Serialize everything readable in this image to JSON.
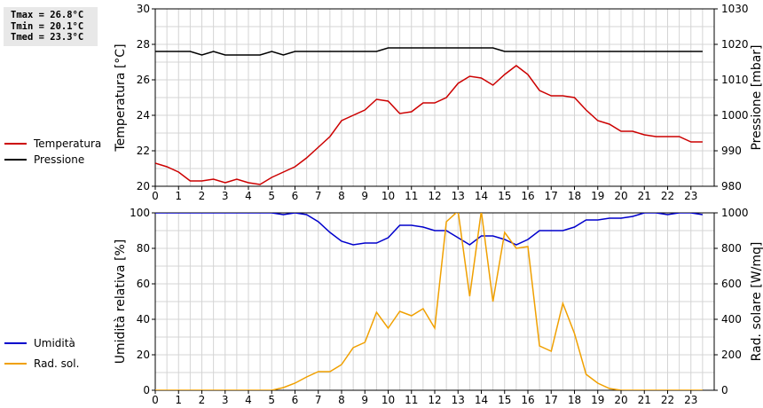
{
  "stats": {
    "tmax": "Tmax = 26.8°C",
    "tmin": "Tmin = 20.1°C",
    "tmed": "Tmed = 23.3°C"
  },
  "chart_data": [
    {
      "type": "line",
      "xlabel": "",
      "x_ticks": [
        0,
        1,
        2,
        3,
        4,
        5,
        6,
        7,
        8,
        9,
        10,
        11,
        12,
        13,
        14,
        15,
        16,
        17,
        18,
        19,
        20,
        21,
        22,
        23
      ],
      "xlim": [
        0,
        24
      ],
      "ylabel_left": "Temperatura [°C]",
      "ylabel_right": "Pressione [mbar]",
      "ylim_left": [
        20,
        30
      ],
      "ylim_right": [
        980,
        1030
      ],
      "yticks_left": [
        20,
        22,
        24,
        26,
        28,
        30
      ],
      "yticks_right": [
        980,
        990,
        1000,
        1010,
        1020,
        1030
      ],
      "grid": true,
      "legend_position": "left",
      "series": [
        {
          "name": "Temperatura",
          "axis": "left",
          "color": "#cc0000",
          "x": [
            0,
            0.5,
            1,
            1.5,
            2,
            2.5,
            3,
            3.5,
            4,
            4.5,
            5,
            5.5,
            6,
            6.5,
            7,
            7.5,
            8,
            8.5,
            9,
            9.5,
            10,
            10.5,
            11,
            11.5,
            12,
            12.5,
            13,
            13.5,
            14,
            14.5,
            15,
            15.5,
            16,
            16.5,
            17,
            17.5,
            18,
            18.5,
            19,
            19.5,
            20,
            20.5,
            21,
            21.5,
            22,
            22.5,
            23,
            23.5
          ],
          "y": [
            21.3,
            21.1,
            20.8,
            20.3,
            20.3,
            20.4,
            20.2,
            20.4,
            20.2,
            20.1,
            20.5,
            20.8,
            21.1,
            21.6,
            22.2,
            22.8,
            23.7,
            24.0,
            24.3,
            24.9,
            24.8,
            24.1,
            24.2,
            24.7,
            24.7,
            25.0,
            25.8,
            26.2,
            26.1,
            25.7,
            26.3,
            26.8,
            26.3,
            25.4,
            25.1,
            25.1,
            25.0,
            24.3,
            23.7,
            23.5,
            23.1,
            23.1,
            22.9,
            22.8,
            22.8,
            22.8,
            22.5,
            22.5
          ]
        },
        {
          "name": "Pressione",
          "axis": "right",
          "color": "#000000",
          "x": [
            0,
            0.5,
            1,
            1.5,
            2,
            2.5,
            3,
            3.5,
            4,
            4.5,
            5,
            5.5,
            6,
            6.5,
            7,
            7.5,
            8,
            8.5,
            9,
            9.5,
            10,
            10.5,
            11,
            11.5,
            12,
            12.5,
            13,
            13.5,
            14,
            14.5,
            15,
            15.5,
            16,
            16.5,
            17,
            17.5,
            18,
            18.5,
            19,
            19.5,
            20,
            20.5,
            21,
            21.5,
            22,
            22.5,
            23,
            23.5
          ],
          "y": [
            1018,
            1018,
            1018,
            1018,
            1017,
            1018,
            1017,
            1017,
            1017,
            1017,
            1018,
            1017,
            1018,
            1018,
            1018,
            1018,
            1018,
            1018,
            1018,
            1018,
            1019,
            1019,
            1019,
            1019,
            1019,
            1019,
            1019,
            1019,
            1019,
            1019,
            1018,
            1018,
            1018,
            1018,
            1018,
            1018,
            1018,
            1018,
            1018,
            1018,
            1018,
            1018,
            1018,
            1018,
            1018,
            1018,
            1018,
            1018
          ]
        }
      ]
    },
    {
      "type": "line",
      "xlabel": "",
      "x_ticks": [
        0,
        1,
        2,
        3,
        4,
        5,
        6,
        7,
        8,
        9,
        10,
        11,
        12,
        13,
        14,
        15,
        16,
        17,
        18,
        19,
        20,
        21,
        22,
        23
      ],
      "xlim": [
        0,
        24
      ],
      "ylabel_left": "Umidità relativa [%]",
      "ylabel_right": "Rad. solare [W/mq]",
      "ylim_left": [
        0,
        100
      ],
      "ylim_right": [
        0,
        1000
      ],
      "yticks_left": [
        0,
        20,
        40,
        60,
        80,
        100
      ],
      "yticks_right": [
        0,
        200,
        400,
        600,
        800,
        1000
      ],
      "grid": true,
      "legend_position": "left",
      "series": [
        {
          "name": "Umidità",
          "axis": "left",
          "color": "#0000cc",
          "x": [
            0,
            0.5,
            1,
            1.5,
            2,
            2.5,
            3,
            3.5,
            4,
            4.5,
            5,
            5.5,
            6,
            6.5,
            7,
            7.5,
            8,
            8.5,
            9,
            9.5,
            10,
            10.5,
            11,
            11.5,
            12,
            12.5,
            13,
            13.5,
            14,
            14.5,
            15,
            15.5,
            16,
            16.5,
            17,
            17.5,
            18,
            18.5,
            19,
            19.5,
            20,
            20.5,
            21,
            21.5,
            22,
            22.5,
            23,
            23.5
          ],
          "y": [
            100,
            100,
            100,
            100,
            100,
            100,
            100,
            100,
            100,
            100,
            100,
            99,
            100,
            99,
            95,
            89,
            84,
            82,
            83,
            83,
            86,
            93,
            93,
            92,
            90,
            90,
            86,
            82,
            87,
            87,
            85,
            82,
            85,
            90,
            90,
            90,
            92,
            96,
            96,
            97,
            97,
            98,
            100,
            100,
            99,
            100,
            100,
            99
          ]
        },
        {
          "name": "Rad. sol.",
          "axis": "right",
          "color": "#f0a000",
          "x": [
            0,
            0.5,
            1,
            1.5,
            2,
            2.5,
            3,
            3.5,
            4,
            4.5,
            5,
            5.5,
            6,
            6.5,
            7,
            7.5,
            8,
            8.5,
            9,
            9.5,
            10,
            10.5,
            11,
            11.5,
            12,
            12.5,
            13,
            13.5,
            14,
            14.5,
            15,
            15.5,
            16,
            16.5,
            17,
            17.5,
            18,
            18.5,
            19,
            19.5,
            20,
            20.5,
            21,
            21.5,
            22,
            22.5,
            23,
            23.5
          ],
          "y": [
            0,
            0,
            0,
            0,
            0,
            0,
            0,
            0,
            0,
            0,
            0,
            15,
            40,
            75,
            105,
            105,
            145,
            240,
            270,
            440,
            350,
            445,
            420,
            460,
            350,
            950,
            1010,
            530,
            1010,
            500,
            890,
            800,
            810,
            250,
            220,
            490,
            320,
            90,
            40,
            10,
            0,
            0,
            0,
            0,
            0,
            0,
            0,
            0
          ]
        }
      ]
    }
  ]
}
